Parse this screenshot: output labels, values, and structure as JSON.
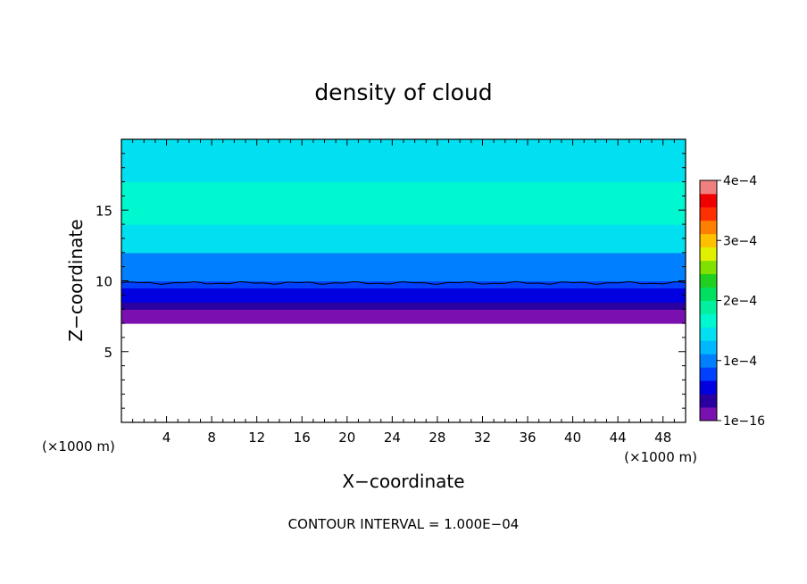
{
  "chart_data": {
    "type": "heatmap",
    "title": "density of cloud",
    "xlabel": "X−coordinate",
    "ylabel": "Z−coordinate",
    "x_unit_label": "(×1000 m)",
    "y_unit_label": "(×1000 m)",
    "xlim": [
      0,
      50
    ],
    "ylim": [
      0,
      20
    ],
    "x_ticks": [
      4,
      8,
      12,
      16,
      20,
      24,
      28,
      32,
      36,
      40,
      44,
      48
    ],
    "y_ticks": [
      5,
      10,
      15
    ],
    "contour_interval_text": "CONTOUR INTERVAL = 1.000E−04",
    "colorbar": {
      "min": 0,
      "max": 0.0004,
      "tick_values": [
        0,
        0.0001,
        0.0002,
        0.0003,
        0.0004
      ],
      "tick_labels": [
        "1e−16",
        "1e−4",
        "2e−4",
        "3e−4",
        "4e−4"
      ],
      "colors": [
        "#7a10b0",
        "#2a00a0",
        "#0000e0",
        "#0040ff",
        "#0080ff",
        "#00b8ff",
        "#00e0f0",
        "#00f8d0",
        "#00f0a0",
        "#00e060",
        "#20d020",
        "#80e000",
        "#e0f000",
        "#ffc000",
        "#ff8000",
        "#ff3000",
        "#f00000",
        "#f08080"
      ]
    },
    "profile": {
      "z": [
        7.0,
        7.5,
        8.0,
        8.5,
        9.0,
        9.5,
        10.0,
        10.5,
        11.0,
        12.0,
        13.0,
        14.0,
        16.0,
        17.0,
        18.0,
        19.0,
        20.0
      ],
      "value": [
        0.0,
        1.5e-05,
        3e-05,
        4.5e-05,
        6e-05,
        7.5e-05,
        9e-05,
        0.0001,
        0.00011,
        0.000135,
        0.00015,
        0.00016,
        0.00016,
        0.00015,
        0.000145,
        0.00014,
        0.000135
      ]
    },
    "cloud_base_z": 7.0,
    "contour_line_z": 9.85
  }
}
